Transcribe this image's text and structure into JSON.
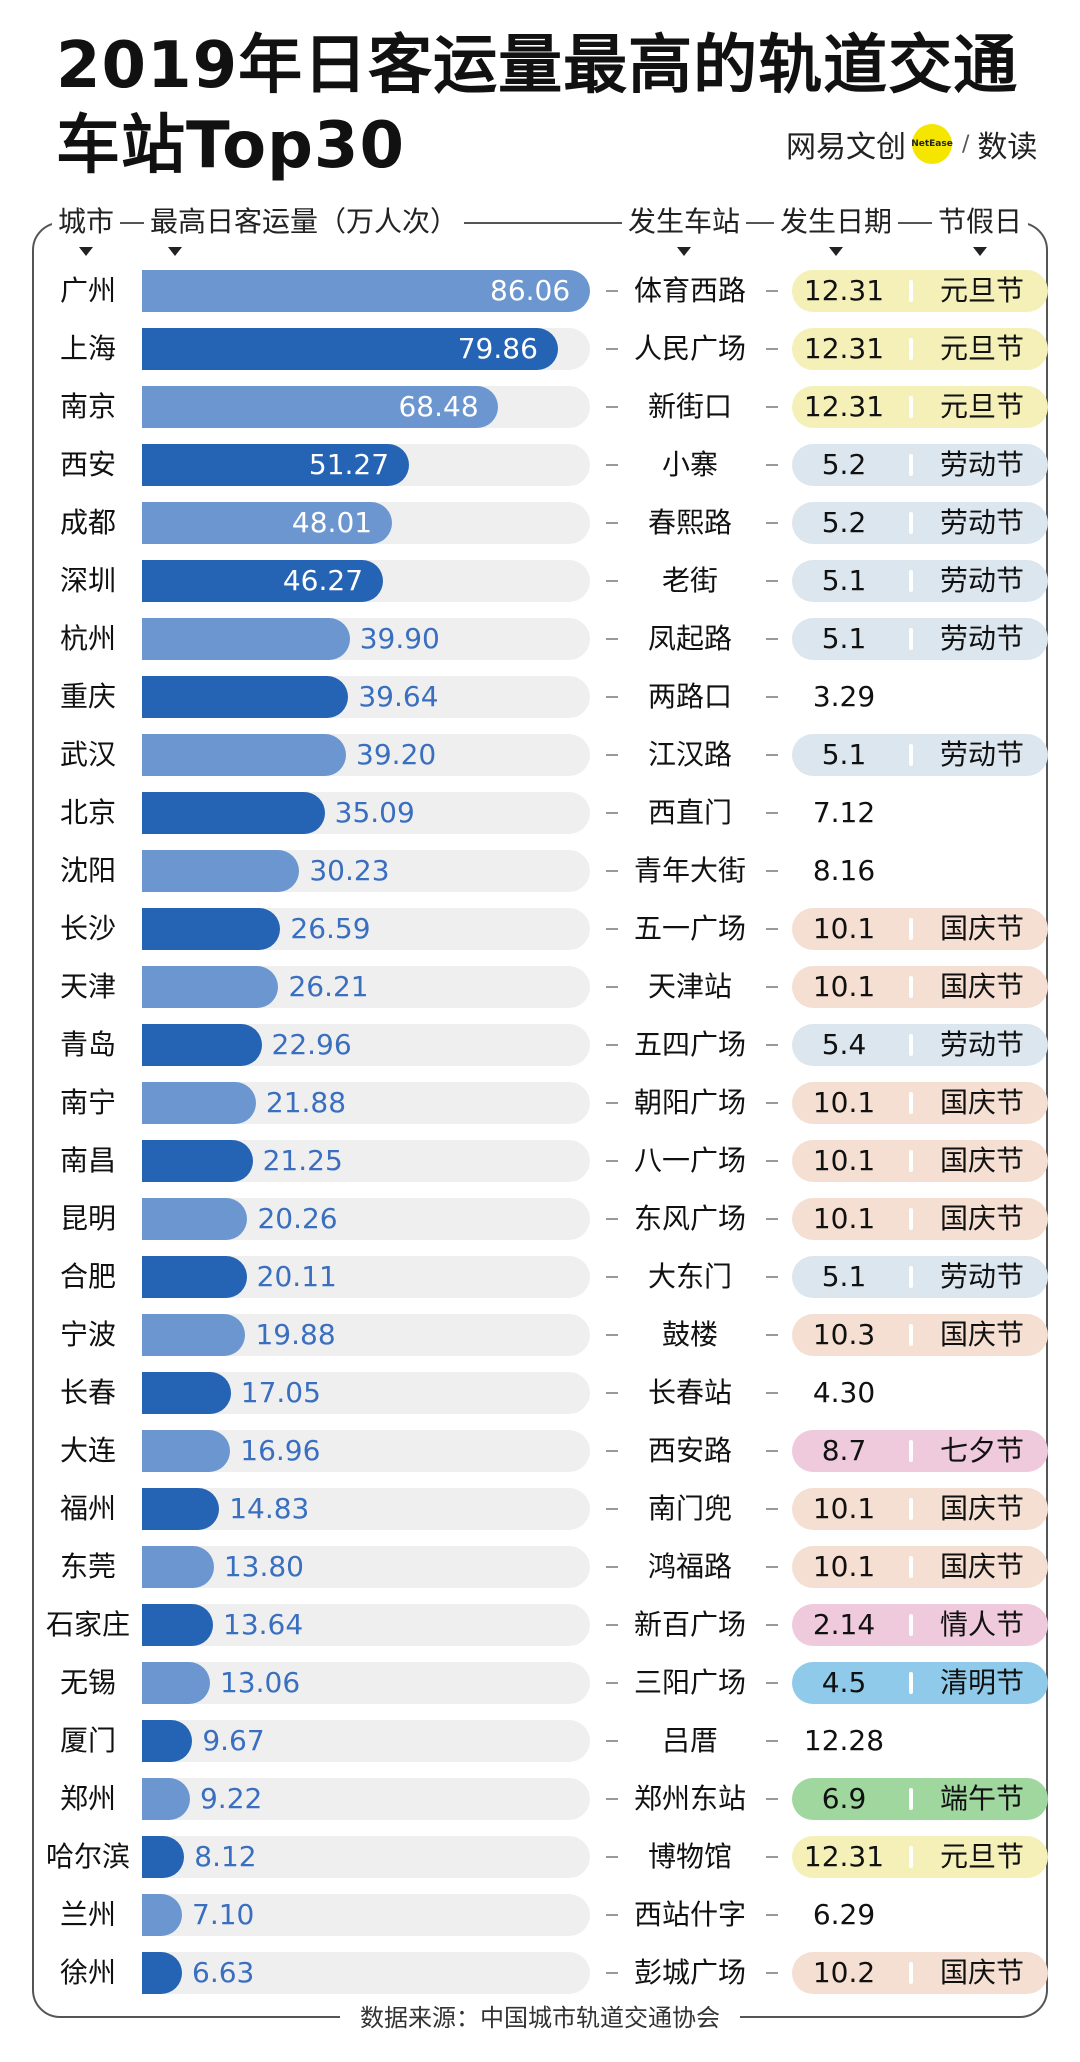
{
  "title": "2019年日客运量最高的轨道交通车站Top30",
  "brand": {
    "name1": "网易文创",
    "dot": "NetEase",
    "name2": "数读"
  },
  "headers": {
    "city": "城市",
    "value": "最高日客运量（万人次）",
    "station": "发生车站",
    "date": "发生日期",
    "holiday": "节假日"
  },
  "source": "数据来源：中国城市轨道交通协会",
  "colors": {
    "bar_dark": "#2563b4",
    "bar_light": "#6b96cf",
    "track": "#efefef",
    "yuandan": "#f4f0b8",
    "laodong": "#dce6ef",
    "guoqing": "#f5dfd2",
    "qixi": "#efc9dc",
    "qingren": "#efc9dc",
    "qingming": "#8fcaea",
    "duanwu": "#9fd79f"
  },
  "chart_data": {
    "type": "bar",
    "orientation": "horizontal",
    "title": "2019年日客运量最高的轨道交通车站Top30",
    "xlabel": "最高日客运量（万人次）",
    "xlim": [
      0,
      86.06
    ],
    "rows": [
      {
        "city": "广州",
        "value": "86.06",
        "station": "体育西路",
        "date": "12.31",
        "holiday": "元旦节",
        "style": "light"
      },
      {
        "city": "上海",
        "value": "79.86",
        "station": "人民广场",
        "date": "12.31",
        "holiday": "元旦节",
        "style": "dark"
      },
      {
        "city": "南京",
        "value": "68.48",
        "station": "新街口",
        "date": "12.31",
        "holiday": "元旦节",
        "style": "light"
      },
      {
        "city": "西安",
        "value": "51.27",
        "station": "小寨",
        "date": "5.2",
        "holiday": "劳动节",
        "style": "dark"
      },
      {
        "city": "成都",
        "value": "48.01",
        "station": "春熙路",
        "date": "5.2",
        "holiday": "劳动节",
        "style": "light"
      },
      {
        "city": "深圳",
        "value": "46.27",
        "station": "老街",
        "date": "5.1",
        "holiday": "劳动节",
        "style": "dark"
      },
      {
        "city": "杭州",
        "value": "39.90",
        "station": "凤起路",
        "date": "5.1",
        "holiday": "劳动节",
        "style": "light"
      },
      {
        "city": "重庆",
        "value": "39.64",
        "station": "两路口",
        "date": "3.29",
        "holiday": "",
        "style": "dark"
      },
      {
        "city": "武汉",
        "value": "39.20",
        "station": "江汉路",
        "date": "5.1",
        "holiday": "劳动节",
        "style": "light"
      },
      {
        "city": "北京",
        "value": "35.09",
        "station": "西直门",
        "date": "7.12",
        "holiday": "",
        "style": "dark"
      },
      {
        "city": "沈阳",
        "value": "30.23",
        "station": "青年大街",
        "date": "8.16",
        "holiday": "",
        "style": "light"
      },
      {
        "city": "长沙",
        "value": "26.59",
        "station": "五一广场",
        "date": "10.1",
        "holiday": "国庆节",
        "style": "dark"
      },
      {
        "city": "天津",
        "value": "26.21",
        "station": "天津站",
        "date": "10.1",
        "holiday": "国庆节",
        "style": "light"
      },
      {
        "city": "青岛",
        "value": "22.96",
        "station": "五四广场",
        "date": "5.4",
        "holiday": "劳动节",
        "style": "dark"
      },
      {
        "city": "南宁",
        "value": "21.88",
        "station": "朝阳广场",
        "date": "10.1",
        "holiday": "国庆节",
        "style": "light"
      },
      {
        "city": "南昌",
        "value": "21.25",
        "station": "八一广场",
        "date": "10.1",
        "holiday": "国庆节",
        "style": "dark"
      },
      {
        "city": "昆明",
        "value": "20.26",
        "station": "东风广场",
        "date": "10.1",
        "holiday": "国庆节",
        "style": "light"
      },
      {
        "city": "合肥",
        "value": "20.11",
        "station": "大东门",
        "date": "5.1",
        "holiday": "劳动节",
        "style": "dark"
      },
      {
        "city": "宁波",
        "value": "19.88",
        "station": "鼓楼",
        "date": "10.3",
        "holiday": "国庆节",
        "style": "light"
      },
      {
        "city": "长春",
        "value": "17.05",
        "station": "长春站",
        "date": "4.30",
        "holiday": "",
        "style": "dark"
      },
      {
        "city": "大连",
        "value": "16.96",
        "station": "西安路",
        "date": "8.7",
        "holiday": "七夕节",
        "style": "light"
      },
      {
        "city": "福州",
        "value": "14.83",
        "station": "南门兜",
        "date": "10.1",
        "holiday": "国庆节",
        "style": "dark"
      },
      {
        "city": "东莞",
        "value": "13.80",
        "station": "鸿福路",
        "date": "10.1",
        "holiday": "国庆节",
        "style": "light"
      },
      {
        "city": "石家庄",
        "value": "13.64",
        "station": "新百广场",
        "date": "2.14",
        "holiday": "情人节",
        "style": "dark"
      },
      {
        "city": "无锡",
        "value": "13.06",
        "station": "三阳广场",
        "date": "4.5",
        "holiday": "清明节",
        "style": "light"
      },
      {
        "city": "厦门",
        "value": "9.67",
        "station": "吕厝",
        "date": "12.28",
        "holiday": "",
        "style": "dark"
      },
      {
        "city": "郑州",
        "value": "9.22",
        "station": "郑州东站",
        "date": "6.9",
        "holiday": "端午节",
        "style": "light"
      },
      {
        "city": "哈尔滨",
        "value": "8.12",
        "station": "博物馆",
        "date": "12.31",
        "holiday": "元旦节",
        "style": "dark"
      },
      {
        "city": "兰州",
        "value": "7.10",
        "station": "西站什字",
        "date": "6.29",
        "holiday": "",
        "style": "light"
      },
      {
        "city": "徐州",
        "value": "6.63",
        "station": "彭城广场",
        "date": "10.2",
        "holiday": "国庆节",
        "style": "dark"
      }
    ]
  }
}
